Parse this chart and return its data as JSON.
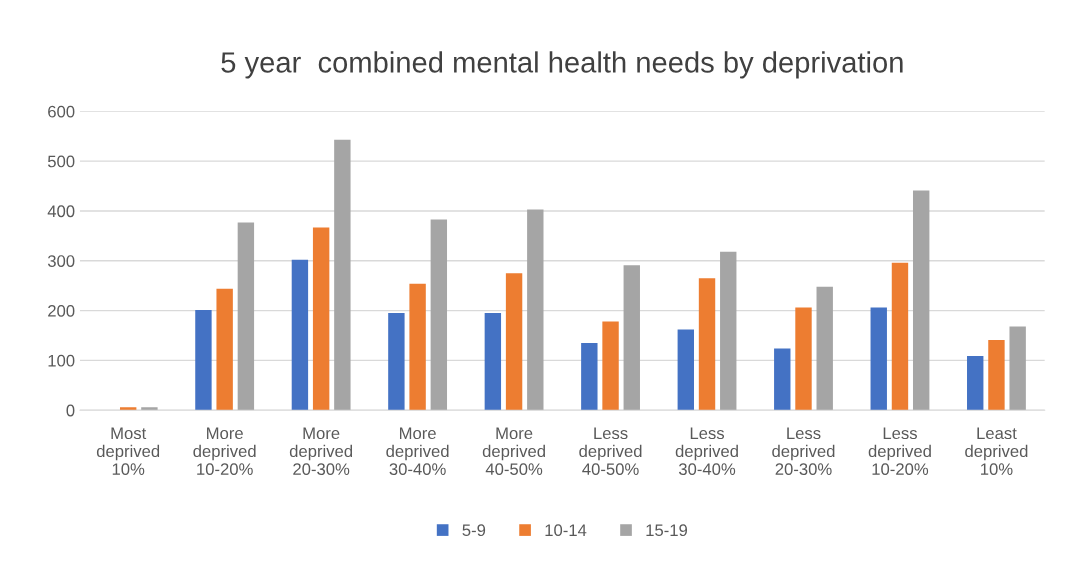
{
  "chart_data": {
    "type": "bar",
    "title": "5 year  combined mental health needs by deprivation",
    "categories": [
      "Most\ndeprived\n10%",
      "More\ndeprived\n10-20%",
      "More\ndeprived\n20-30%",
      "More\ndeprived\n30-40%",
      "More\ndeprived\n40-50%",
      "Less\ndeprived\n40-50%",
      "Less\ndeprived\n30-40%",
      "Less\ndeprived\n20-30%",
      "Less\ndeprived\n10-20%",
      "Least\ndeprived\n10%"
    ],
    "series": [
      {
        "name": "5-9",
        "color": "#4472c4",
        "values": [
          0,
          201,
          302,
          195,
          195,
          135,
          162,
          124,
          206,
          109
        ]
      },
      {
        "name": "10-14",
        "color": "#ed7d31",
        "values": [
          6,
          244,
          367,
          254,
          275,
          178,
          265,
          206,
          296,
          141
        ]
      },
      {
        "name": "15-19",
        "color": "#a5a5a5",
        "values": [
          6,
          377,
          543,
          383,
          403,
          291,
          318,
          248,
          441,
          168
        ]
      }
    ],
    "ylim": [
      0,
      600
    ],
    "yticks": [
      0,
      100,
      200,
      300,
      400,
      500,
      600
    ],
    "grid": "y",
    "legend": "bottom"
  }
}
